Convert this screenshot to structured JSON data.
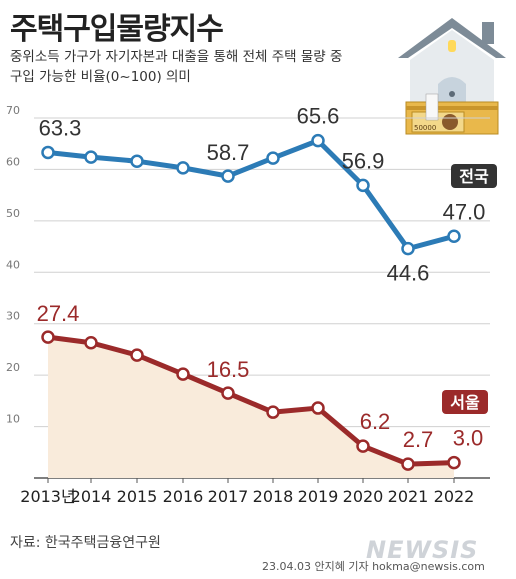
{
  "title": "주택구입물량지수",
  "subtitle_line1": "중위소득 가구가 자기자본과 대출을 통해 전체 주택 물량 중",
  "subtitle_line2": "구입 가능한 비율(0~100) 의미",
  "source": "자료: 한국주택금융연구원",
  "credit": "23.04.03 안지혜 기자 hokma@newsis.com",
  "watermark": "NEWSIS",
  "banknote_label": "50000",
  "colors": {
    "national": "#2c7bb6",
    "seoul": "#9b2a2a",
    "seoul_fill": "#f9ebdb",
    "grid": "#d0d0d0",
    "badge_national": "#333333"
  },
  "chart_data": {
    "type": "line",
    "x": [
      "2013년",
      "2014",
      "2015",
      "2016",
      "2017",
      "2018",
      "2019",
      "2020",
      "2021",
      "2022"
    ],
    "y_ticks": [
      "10",
      "20",
      "30",
      "40",
      "50",
      "60",
      "70"
    ],
    "ylim": [
      0,
      70
    ],
    "grid": true,
    "series": [
      {
        "name": "전국",
        "values": [
          63.3,
          62.4,
          61.6,
          60.3,
          58.7,
          62.2,
          65.6,
          56.9,
          44.6,
          47.0
        ],
        "labels": [
          "63.3",
          null,
          null,
          null,
          "58.7",
          null,
          "65.6",
          "56.9",
          "44.6",
          "47.0"
        ]
      },
      {
        "name": "서울",
        "values": [
          27.4,
          26.3,
          23.9,
          20.2,
          16.5,
          12.8,
          13.6,
          6.2,
          2.7,
          3.0
        ],
        "labels": [
          "27.4",
          null,
          null,
          null,
          "16.5",
          null,
          null,
          "6.2",
          "2.7",
          "3.0"
        ]
      }
    ]
  }
}
